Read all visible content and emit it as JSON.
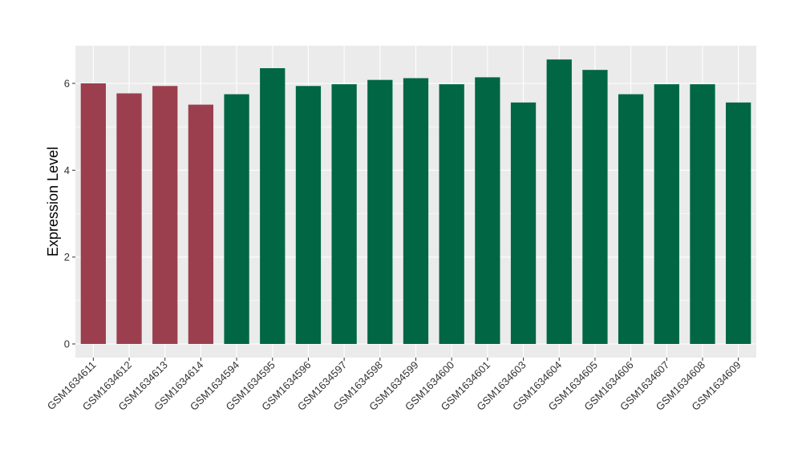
{
  "chart_data": {
    "type": "bar",
    "ylabel": "Expression Level",
    "xlabel": "",
    "title": "",
    "ylim": [
      -0.28,
      6.8
    ],
    "yticks": [
      0,
      2,
      4,
      6
    ],
    "categories": [
      "GSM1634611",
      "GSM1634612",
      "GSM1634613",
      "GSM1634614",
      "GSM1634594",
      "GSM1634595",
      "GSM1634596",
      "GSM1634597",
      "GSM1634598",
      "GSM1634599",
      "GSM1634600",
      "GSM1634601",
      "GSM1634603",
      "GSM1634604",
      "GSM1634605",
      "GSM1634606",
      "GSM1634607",
      "GSM1634608",
      "GSM1634609"
    ],
    "values": [
      6.0,
      5.77,
      5.94,
      5.51,
      5.75,
      6.35,
      5.94,
      5.98,
      6.08,
      6.12,
      5.98,
      6.14,
      5.56,
      6.55,
      6.31,
      5.75,
      5.98,
      5.98,
      5.56
    ],
    "groups": [
      "g1",
      "g1",
      "g1",
      "g1",
      "g2",
      "g2",
      "g2",
      "g2",
      "g2",
      "g2",
      "g2",
      "g2",
      "g2",
      "g2",
      "g2",
      "g2",
      "g2",
      "g2",
      "g2"
    ],
    "colors": {
      "g1": "#9b3f4f",
      "g2": "#006644"
    },
    "panel_background": "#ebebeb",
    "grid_color": "#ffffff",
    "grid": true,
    "legend": "none"
  }
}
